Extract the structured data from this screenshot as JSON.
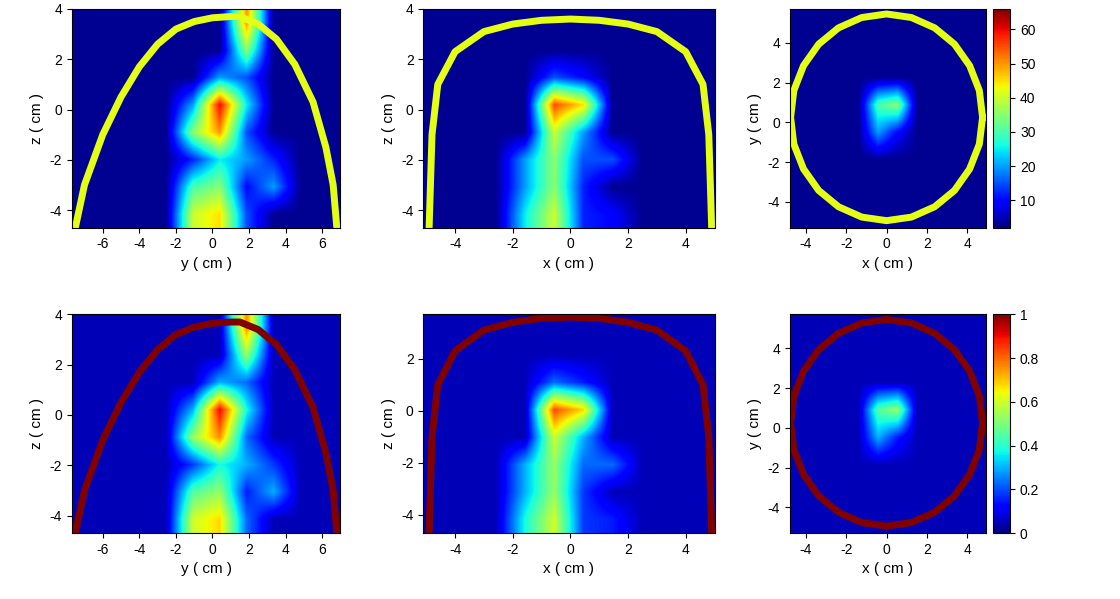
{
  "chart_data": [
    {
      "type": "heatmap",
      "x_label": "y ( cm )",
      "y_label": "z ( cm )",
      "xlim": [
        -7.7,
        7.0
      ],
      "ylim": [
        -4.7,
        4.0
      ],
      "xticks": [
        -6,
        -4,
        -2,
        0,
        2,
        4,
        6
      ],
      "yticks": [
        -4,
        -2,
        0,
        2,
        4
      ],
      "color_range": [
        2,
        66
      ],
      "cells": [
        [
          3,
          3,
          3,
          3,
          3,
          3,
          50,
          3,
          3,
          3
        ],
        [
          3,
          3,
          3,
          3,
          3,
          3,
          35,
          3,
          3,
          3
        ],
        [
          3,
          3,
          3,
          3,
          3,
          20,
          15,
          3,
          3,
          3
        ],
        [
          3,
          3,
          3,
          3,
          20,
          60,
          25,
          3,
          3,
          3
        ],
        [
          3,
          3,
          3,
          3,
          35,
          50,
          15,
          3,
          3,
          3
        ],
        [
          3,
          3,
          3,
          3,
          12,
          25,
          20,
          12,
          3,
          3
        ],
        [
          3,
          3,
          3,
          3,
          30,
          35,
          10,
          20,
          3,
          3
        ],
        [
          3,
          3,
          3,
          3,
          40,
          45,
          15,
          3,
          3,
          3
        ]
      ],
      "boundary": {
        "value": 42,
        "x": [
          -7.5,
          -7,
          -6,
          -5,
          -4,
          -3,
          -2,
          -1,
          0,
          1,
          1.5,
          2.5,
          3.5,
          4.5,
          5.5,
          6.2,
          6.6,
          6.8
        ],
        "y": [
          -4.7,
          -3,
          -1,
          0.5,
          1.7,
          2.6,
          3.2,
          3.5,
          3.65,
          3.7,
          3.7,
          3.4,
          2.8,
          1.8,
          0.3,
          -1.5,
          -3,
          -4.7
        ]
      }
    },
    {
      "type": "heatmap",
      "x_label": "x ( cm )",
      "y_label": "z ( cm )",
      "xlim": [
        -5.1,
        5.0
      ],
      "ylim": [
        -4.7,
        4.0
      ],
      "xticks": [
        -4,
        -2,
        0,
        2,
        4
      ],
      "yticks": [
        -4,
        -2,
        0,
        2,
        4
      ],
      "color_range": [
        2,
        66
      ],
      "cells": [
        [
          3,
          3,
          3,
          3,
          3,
          3,
          3,
          3,
          3,
          3
        ],
        [
          3,
          3,
          3,
          3,
          3,
          3,
          3,
          3,
          3,
          3
        ],
        [
          3,
          3,
          3,
          3,
          15,
          10,
          3,
          3,
          3,
          3
        ],
        [
          3,
          3,
          3,
          3,
          55,
          45,
          3,
          3,
          3,
          3
        ],
        [
          3,
          3,
          3,
          3,
          40,
          20,
          3,
          3,
          3,
          3
        ],
        [
          3,
          3,
          3,
          20,
          35,
          15,
          15,
          3,
          3,
          3
        ],
        [
          3,
          3,
          3,
          20,
          35,
          12,
          3,
          3,
          3,
          3
        ],
        [
          3,
          3,
          3,
          25,
          40,
          12,
          10,
          3,
          3,
          3
        ]
      ],
      "boundary": {
        "value": 42,
        "x": [
          -4.9,
          -4.8,
          -4.6,
          -4,
          -3,
          -2,
          -1,
          0,
          1,
          2,
          3,
          4,
          4.6,
          4.8,
          4.9
        ],
        "y": [
          -4.7,
          -1,
          1,
          2.3,
          3.1,
          3.4,
          3.55,
          3.6,
          3.55,
          3.4,
          3.1,
          2.3,
          1,
          -1,
          -4.7
        ]
      }
    },
    {
      "type": "heatmap",
      "x_label": "x ( cm )",
      "y_label": "y ( cm )",
      "xlim": [
        -4.8,
        4.9
      ],
      "ylim": [
        -5.3,
        5.7
      ],
      "xticks": [
        -4,
        -2,
        0,
        2,
        4
      ],
      "yticks": [
        -4,
        -2,
        0,
        2,
        4
      ],
      "color_range": [
        2,
        66
      ],
      "color_ticks": [
        10,
        20,
        30,
        40,
        50,
        60
      ],
      "cells": [
        [
          3,
          3,
          3,
          3,
          3,
          3,
          3,
          3,
          3,
          3
        ],
        [
          3,
          3,
          3,
          3,
          3,
          3,
          3,
          3,
          3,
          3
        ],
        [
          3,
          3,
          3,
          3,
          3,
          3,
          3,
          3,
          3,
          3
        ],
        [
          3,
          3,
          3,
          3,
          30,
          35,
          3,
          3,
          3,
          3
        ],
        [
          3,
          3,
          3,
          3,
          20,
          10,
          3,
          3,
          3,
          3
        ],
        [
          3,
          3,
          3,
          3,
          3,
          3,
          3,
          3,
          3,
          3
        ],
        [
          3,
          3,
          3,
          3,
          3,
          3,
          3,
          3,
          3,
          3
        ],
        [
          3,
          3,
          3,
          3,
          3,
          3,
          3,
          3,
          3,
          3
        ]
      ],
      "boundary": {
        "value": 42,
        "x": [
          4.75,
          4.59,
          4.11,
          3.36,
          2.38,
          1.23,
          0,
          -1.23,
          -2.38,
          -3.36,
          -4.11,
          -4.59,
          -4.75,
          -4.59,
          -4.11,
          -3.36,
          -2.38,
          -1.23,
          0,
          1.23,
          2.38,
          3.36,
          4.11,
          4.59,
          4.75
        ],
        "y": [
          0.25,
          1.6,
          2.85,
          3.93,
          4.75,
          5.27,
          5.45,
          5.27,
          4.75,
          3.93,
          2.85,
          1.6,
          0.25,
          -1.1,
          -2.35,
          -3.43,
          -4.25,
          -4.77,
          -4.95,
          -4.77,
          -4.25,
          -3.43,
          -2.35,
          -1.1,
          0.25
        ]
      }
    },
    {
      "type": "heatmap",
      "x_label": "y ( cm )",
      "y_label": "z ( cm )",
      "xlim": [
        -7.7,
        7.0
      ],
      "ylim": [
        -4.7,
        4.0
      ],
      "xticks": [
        -6,
        -4,
        -2,
        0,
        2,
        4,
        6
      ],
      "yticks": [
        -4,
        -2,
        0,
        2,
        4
      ],
      "color_range": [
        0,
        1
      ],
      "cells": [
        [
          0.05,
          0.05,
          0.05,
          0.05,
          0.05,
          0.05,
          0.76,
          0.05,
          0.05,
          0.05
        ],
        [
          0.05,
          0.05,
          0.05,
          0.05,
          0.05,
          0.05,
          0.53,
          0.05,
          0.05,
          0.05
        ],
        [
          0.05,
          0.05,
          0.05,
          0.05,
          0.05,
          0.3,
          0.23,
          0.05,
          0.05,
          0.05
        ],
        [
          0.05,
          0.05,
          0.05,
          0.05,
          0.3,
          0.91,
          0.38,
          0.05,
          0.05,
          0.05
        ],
        [
          0.05,
          0.05,
          0.05,
          0.05,
          0.53,
          0.76,
          0.23,
          0.05,
          0.05,
          0.05
        ],
        [
          0.05,
          0.05,
          0.05,
          0.05,
          0.18,
          0.38,
          0.3,
          0.18,
          0.05,
          0.05
        ],
        [
          0.05,
          0.05,
          0.05,
          0.05,
          0.45,
          0.53,
          0.15,
          0.3,
          0.05,
          0.05
        ],
        [
          0.05,
          0.05,
          0.05,
          0.05,
          0.6,
          0.68,
          0.23,
          0.05,
          0.05,
          0.05
        ]
      ],
      "boundary": {
        "value": 1,
        "x": [
          -7.5,
          -7,
          -6,
          -5,
          -4,
          -3,
          -2,
          -1,
          0,
          1,
          1.5,
          2.5,
          3.5,
          4.5,
          5.5,
          6.2,
          6.6,
          6.8
        ],
        "y": [
          -4.7,
          -3,
          -1,
          0.5,
          1.7,
          2.6,
          3.2,
          3.5,
          3.65,
          3.7,
          3.7,
          3.4,
          2.8,
          1.8,
          0.3,
          -1.5,
          -3,
          -4.7
        ]
      }
    },
    {
      "type": "heatmap",
      "x_label": "x ( cm )",
      "y_label": "z ( cm )",
      "xlim": [
        -5.1,
        5.0
      ],
      "ylim": [
        -4.7,
        3.7
      ],
      "xticks": [
        -4,
        -2,
        0,
        2,
        4
      ],
      "yticks": [
        -4,
        -2,
        0,
        2
      ],
      "color_range": [
        0,
        1
      ],
      "cells": [
        [
          0.05,
          0.05,
          0.05,
          0.05,
          0.05,
          0.05,
          0.05,
          0.05,
          0.05,
          0.05
        ],
        [
          0.05,
          0.05,
          0.05,
          0.05,
          0.05,
          0.05,
          0.05,
          0.05,
          0.05,
          0.05
        ],
        [
          0.05,
          0.05,
          0.05,
          0.05,
          0.23,
          0.15,
          0.05,
          0.05,
          0.05,
          0.05
        ],
        [
          0.05,
          0.05,
          0.05,
          0.05,
          0.83,
          0.68,
          0.05,
          0.05,
          0.05,
          0.05
        ],
        [
          0.05,
          0.05,
          0.05,
          0.05,
          0.6,
          0.3,
          0.05,
          0.05,
          0.05,
          0.05
        ],
        [
          0.05,
          0.05,
          0.05,
          0.3,
          0.53,
          0.23,
          0.23,
          0.05,
          0.05,
          0.05
        ],
        [
          0.05,
          0.05,
          0.05,
          0.3,
          0.53,
          0.18,
          0.05,
          0.05,
          0.05,
          0.05
        ],
        [
          0.05,
          0.05,
          0.05,
          0.38,
          0.6,
          0.18,
          0.15,
          0.05,
          0.05,
          0.05
        ]
      ],
      "boundary": {
        "value": 1,
        "x": [
          -4.9,
          -4.8,
          -4.6,
          -4,
          -3,
          -2,
          -1,
          0,
          1,
          2,
          3,
          4,
          4.6,
          4.8,
          4.9
        ],
        "y": [
          -4.7,
          -1,
          1,
          2.3,
          3.1,
          3.4,
          3.55,
          3.6,
          3.55,
          3.4,
          3.1,
          2.3,
          1,
          -1,
          -4.7
        ]
      }
    },
    {
      "type": "heatmap",
      "x_label": "x ( cm )",
      "y_label": "y ( cm )",
      "xlim": [
        -4.8,
        4.9
      ],
      "ylim": [
        -5.3,
        5.7
      ],
      "xticks": [
        -4,
        -2,
        0,
        2,
        4
      ],
      "yticks": [
        -4,
        -2,
        0,
        2,
        4
      ],
      "color_range": [
        0,
        1
      ],
      "color_ticks": [
        0,
        0.2,
        0.4,
        0.6,
        0.8,
        1
      ],
      "cells": [
        [
          0.05,
          0.05,
          0.05,
          0.05,
          0.05,
          0.05,
          0.05,
          0.05,
          0.05,
          0.05
        ],
        [
          0.05,
          0.05,
          0.05,
          0.05,
          0.05,
          0.05,
          0.05,
          0.05,
          0.05,
          0.05
        ],
        [
          0.05,
          0.05,
          0.05,
          0.05,
          0.05,
          0.05,
          0.05,
          0.05,
          0.05,
          0.05
        ],
        [
          0.05,
          0.05,
          0.05,
          0.05,
          0.45,
          0.53,
          0.05,
          0.05,
          0.05,
          0.05
        ],
        [
          0.05,
          0.05,
          0.05,
          0.05,
          0.3,
          0.15,
          0.05,
          0.05,
          0.05,
          0.05
        ],
        [
          0.05,
          0.05,
          0.05,
          0.05,
          0.05,
          0.05,
          0.05,
          0.05,
          0.05,
          0.05
        ],
        [
          0.05,
          0.05,
          0.05,
          0.05,
          0.05,
          0.05,
          0.05,
          0.05,
          0.05,
          0.05
        ],
        [
          0.05,
          0.05,
          0.05,
          0.05,
          0.05,
          0.05,
          0.05,
          0.05,
          0.05,
          0.05
        ]
      ],
      "boundary": {
        "value": 1,
        "x": [
          4.75,
          4.59,
          4.11,
          3.36,
          2.38,
          1.23,
          0,
          -1.23,
          -2.38,
          -3.36,
          -4.11,
          -4.59,
          -4.75,
          -4.59,
          -4.11,
          -3.36,
          -2.38,
          -1.23,
          0,
          1.23,
          2.38,
          3.36,
          4.11,
          4.59,
          4.75
        ],
        "y": [
          0.25,
          1.6,
          2.85,
          3.93,
          4.75,
          5.27,
          5.45,
          5.27,
          4.75,
          3.93,
          2.85,
          1.6,
          0.25,
          -1.1,
          -2.35,
          -3.43,
          -4.25,
          -4.77,
          -4.95,
          -4.77,
          -4.25,
          -3.43,
          -2.35,
          -1.1,
          0.25
        ]
      }
    }
  ]
}
